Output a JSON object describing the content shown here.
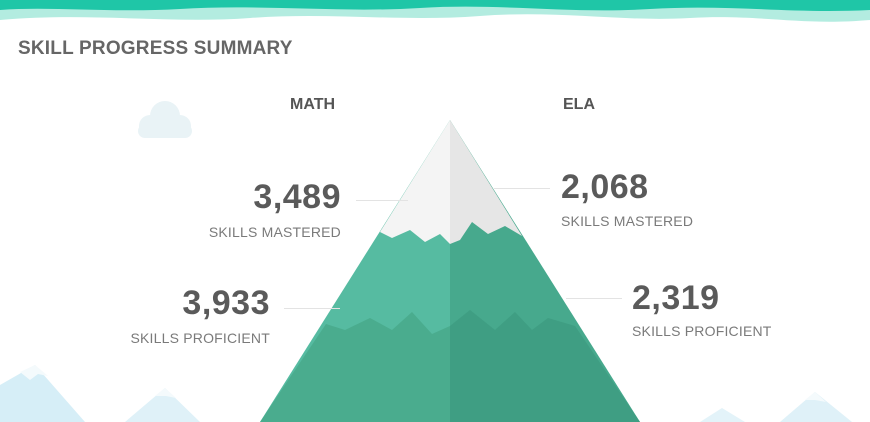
{
  "summary": {
    "title": "SKILL PROGRESS SUMMARY"
  },
  "math": {
    "heading": "MATH",
    "mastered_value": "3,489",
    "mastered_label": "SKILLS MASTERED",
    "proficient_value": "3,933",
    "proficient_label": "SKILLS PROFICIENT"
  },
  "ela": {
    "heading": "ELA",
    "mastered_value": "2,068",
    "mastered_label": "SKILLS MASTERED",
    "proficient_value": "2,319",
    "proficient_label": "SKILLS PROFICIENT"
  },
  "colors": {
    "teal_dark": "#3fa88b",
    "teal_light": "#56bba1",
    "snow": "#ececec",
    "banner": "#1cc3a4"
  }
}
